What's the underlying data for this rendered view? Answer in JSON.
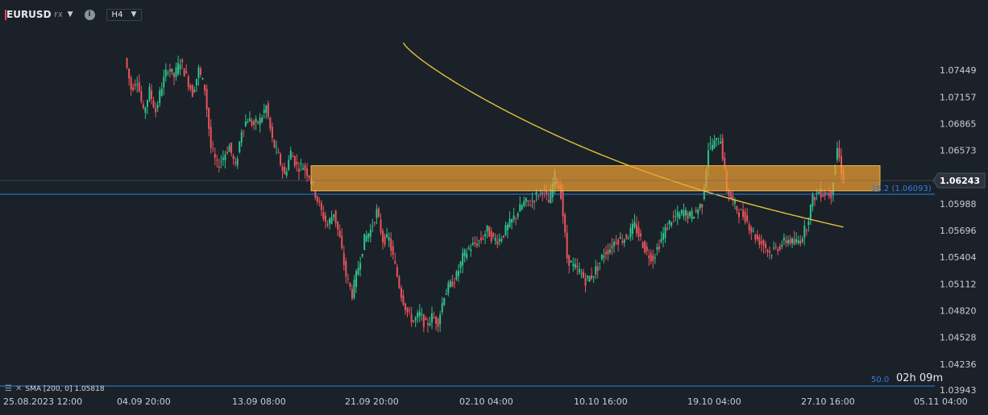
{
  "toolbar": {
    "symbol": "EURUSD",
    "market": "FX",
    "timeframe": "H4",
    "info_icon": "info-icon",
    "symbol_dropdown_icon": "chevron-down-icon",
    "timeframe_dropdown_icon": "chevron-down-icon"
  },
  "colors": {
    "background": "#1a2129",
    "bull": "#2ec28a",
    "bear": "#e8545c",
    "sma": "#e4c13a",
    "zone_fill": "#f0a030",
    "price_line": "#2f7fe0",
    "axis_text": "#c9ced4"
  },
  "indicator_legend": {
    "icons": [
      "settings-icon",
      "close-icon"
    ],
    "text": "SMA [200, 0] 1.05818"
  },
  "timer": "02h 09m",
  "chart_data": {
    "type": "candlestick",
    "symbol": "EURUSD",
    "timeframe": "H4",
    "y_ticks": [
      "1.07449",
      "1.07157",
      "1.06865",
      "1.06573",
      "1.06243",
      "1.05988",
      "1.05696",
      "1.05404",
      "1.05112",
      "1.04820",
      "1.04528",
      "1.04236",
      "1.03943"
    ],
    "ylim": [
      1.03943,
      1.07741
    ],
    "x_ticks": [
      "25.08.2023  12:00",
      "04.09  20:00",
      "13.09  08:00",
      "21.09  20:00",
      "02.10  04:00",
      "10.10  16:00",
      "19.10  04:00",
      "27.10  16:00",
      "05.11  04:00"
    ],
    "current_price": "1.06243",
    "fib_levels": [
      {
        "label": "38.2 (1.06093)",
        "value": 1.06093
      },
      {
        "label": "50.0",
        "value": 1.03943
      }
    ],
    "zone": {
      "top": 1.06405,
      "bottom": 1.0613
    },
    "sma": {
      "name": "SMA [200, 0]",
      "last_value": 1.05818
    },
    "close_anchors": [
      [
        0,
        1.0758
      ],
      [
        3,
        1.0725
      ],
      [
        6,
        1.0735
      ],
      [
        9,
        1.0698
      ],
      [
        12,
        1.0722
      ],
      [
        15,
        1.07
      ],
      [
        18,
        1.0728
      ],
      [
        21,
        1.0748
      ],
      [
        24,
        1.0738
      ],
      [
        27,
        1.0755
      ],
      [
        30,
        1.0738
      ],
      [
        33,
        1.072
      ],
      [
        36,
        1.0745
      ],
      [
        39,
        1.0725
      ],
      [
        42,
        1.066
      ],
      [
        45,
        1.064
      ],
      [
        48,
        1.065
      ],
      [
        51,
        1.0662
      ],
      [
        54,
        1.0638
      ],
      [
        57,
        1.068
      ],
      [
        60,
        1.0692
      ],
      [
        63,
        1.0685
      ],
      [
        66,
        1.069
      ],
      [
        69,
        1.0705
      ],
      [
        72,
        1.0668
      ],
      [
        75,
        1.065
      ],
      [
        78,
        1.063
      ],
      [
        81,
        1.0655
      ],
      [
        84,
        1.064
      ],
      [
        87,
        1.064
      ],
      [
        90,
        1.063
      ],
      [
        93,
        1.061
      ],
      [
        96,
        1.059
      ],
      [
        99,
        1.0575
      ],
      [
        102,
        1.059
      ],
      [
        105,
        1.056
      ],
      [
        108,
        1.052
      ],
      [
        111,
        1.05
      ],
      [
        114,
        1.053
      ],
      [
        117,
        1.056
      ],
      [
        120,
        1.057
      ],
      [
        123,
        1.059
      ],
      [
        126,
        1.056
      ],
      [
        129,
        1.056
      ],
      [
        132,
        1.053
      ],
      [
        135,
        1.05
      ],
      [
        138,
        1.048
      ],
      [
        141,
        1.047
      ],
      [
        144,
        1.0478
      ],
      [
        147,
        1.0466
      ],
      [
        150,
        1.0475
      ],
      [
        153,
        1.047
      ],
      [
        156,
        1.05
      ],
      [
        159,
        1.051
      ],
      [
        162,
        1.052
      ],
      [
        165,
        1.054
      ],
      [
        168,
        1.055
      ],
      [
        171,
        1.0555
      ],
      [
        174,
        1.056
      ],
      [
        177,
        1.057
      ],
      [
        180,
        1.056
      ],
      [
        183,
        1.056
      ],
      [
        186,
        1.057
      ],
      [
        189,
        1.058
      ],
      [
        192,
        1.059
      ],
      [
        195,
        1.06
      ],
      [
        198,
        1.06
      ],
      [
        201,
        1.0608
      ],
      [
        204,
        1.0615
      ],
      [
        207,
        1.06
      ],
      [
        210,
        1.063
      ],
      [
        213,
        1.061
      ],
      [
        216,
        1.054
      ],
      [
        219,
        1.053
      ],
      [
        222,
        1.0525
      ],
      [
        225,
        1.0515
      ],
      [
        228,
        1.052
      ],
      [
        231,
        1.053
      ],
      [
        234,
        1.0545
      ],
      [
        237,
        1.055
      ],
      [
        240,
        1.056
      ],
      [
        243,
        1.056
      ],
      [
        246,
        1.0565
      ],
      [
        249,
        1.0575
      ],
      [
        252,
        1.056
      ],
      [
        255,
        1.0545
      ],
      [
        258,
        1.054
      ],
      [
        261,
        1.0555
      ],
      [
        264,
        1.057
      ],
      [
        267,
        1.0582
      ],
      [
        270,
        1.0585
      ],
      [
        273,
        1.059
      ],
      [
        276,
        1.0585
      ],
      [
        279,
        1.059
      ],
      [
        282,
        1.06
      ],
      [
        285,
        1.066
      ],
      [
        288,
        1.0665
      ],
      [
        291,
        1.067
      ],
      [
        294,
        1.0615
      ],
      [
        297,
        1.06
      ],
      [
        300,
        1.059
      ],
      [
        303,
        1.0585
      ],
      [
        306,
        1.057
      ],
      [
        309,
        1.056
      ],
      [
        312,
        1.0555
      ],
      [
        315,
        1.0545
      ],
      [
        318,
        1.055
      ],
      [
        321,
        1.0555
      ],
      [
        324,
        1.056
      ],
      [
        327,
        1.0555
      ],
      [
        330,
        1.056
      ],
      [
        333,
        1.0575
      ],
      [
        336,
        1.0605
      ],
      [
        339,
        1.0612
      ],
      [
        342,
        1.061
      ],
      [
        345,
        1.061
      ],
      [
        348,
        1.066
      ],
      [
        351,
        1.0625
      ]
    ]
  }
}
